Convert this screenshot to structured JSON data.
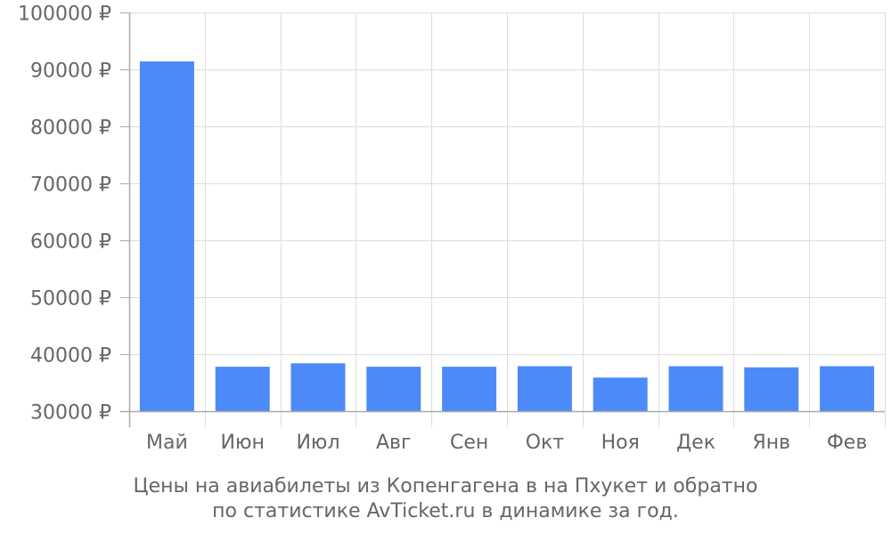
{
  "chart_data": {
    "type": "bar",
    "categories": [
      "Май",
      "Июн",
      "Июл",
      "Авг",
      "Сен",
      "Окт",
      "Ноя",
      "Дек",
      "Янв",
      "Фев"
    ],
    "values": [
      91400,
      37800,
      38400,
      37800,
      37800,
      37900,
      35900,
      37900,
      37700,
      37900
    ],
    "ylim": [
      30000,
      100000
    ],
    "yticks": [
      30000,
      40000,
      50000,
      60000,
      70000,
      80000,
      90000,
      100000
    ],
    "ytick_suffix": " ₽",
    "grid": true,
    "bar_color": "#4d8af9",
    "grid_color": "#dddddd",
    "axis_color": "#aaaaaa",
    "text_color": "#666666"
  },
  "caption": {
    "line1": "Цены на авиабилеты из Копенгагена в на Пхукет и обратно",
    "line2": "по статистике AvTicket.ru в динамике за год."
  }
}
